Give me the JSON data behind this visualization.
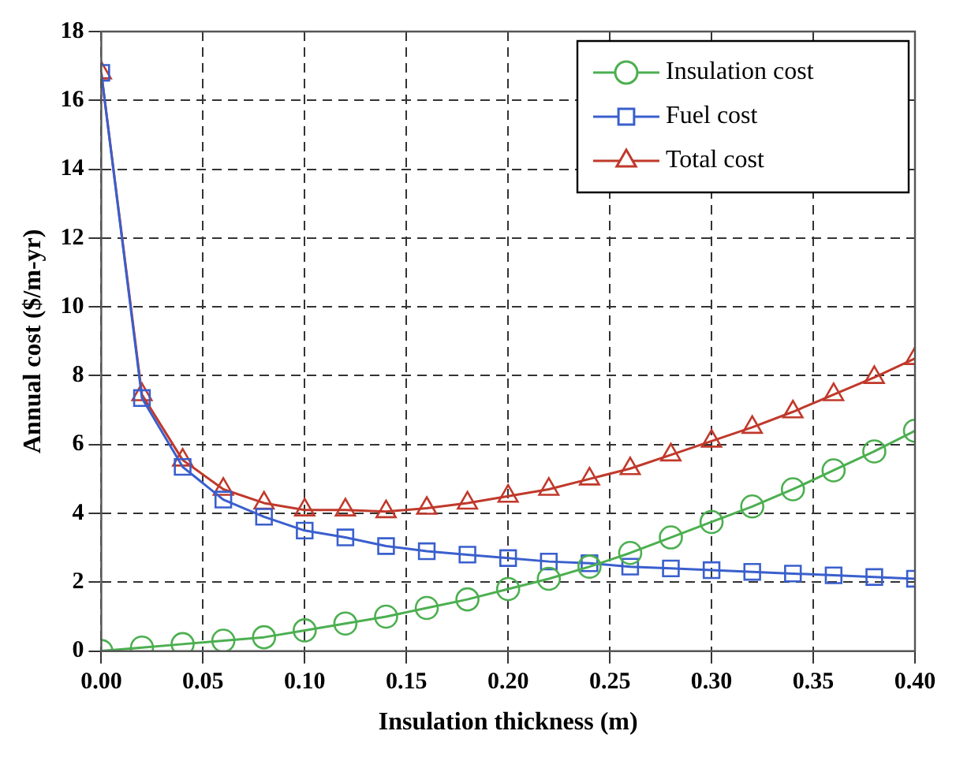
{
  "chart_data": {
    "type": "line",
    "xlabel": "Insulation thickness (m)",
    "ylabel": "Annual cost ($/m-yr)",
    "x": [
      0,
      0.02,
      0.04,
      0.06,
      0.08,
      0.1,
      0.12,
      0.14,
      0.16,
      0.18,
      0.2,
      0.22,
      0.24,
      0.26,
      0.28,
      0.3,
      0.32,
      0.34,
      0.36,
      0.38,
      0.4
    ],
    "series": [
      {
        "name": "Insulation cost",
        "color": "#4caf50",
        "marker": "circle",
        "values": [
          0,
          0.1,
          0.2,
          0.3,
          0.4,
          0.6,
          0.8,
          1.0,
          1.25,
          1.5,
          1.8,
          2.1,
          2.45,
          2.85,
          3.3,
          3.75,
          4.2,
          4.7,
          5.25,
          5.8,
          6.4
        ]
      },
      {
        "name": "Fuel cost",
        "color": "#3a5fcd",
        "marker": "square",
        "values": [
          16.8,
          7.35,
          5.35,
          4.4,
          3.9,
          3.5,
          3.3,
          3.05,
          2.9,
          2.8,
          2.7,
          2.6,
          2.55,
          2.45,
          2.4,
          2.35,
          2.3,
          2.25,
          2.2,
          2.15,
          2.1
        ]
      },
      {
        "name": "Total cost",
        "color": "#c0392b",
        "marker": "triangle",
        "values": [
          16.8,
          7.45,
          5.55,
          4.7,
          4.3,
          4.1,
          4.1,
          4.05,
          4.15,
          4.3,
          4.5,
          4.7,
          5.0,
          5.3,
          5.7,
          6.1,
          6.5,
          6.95,
          7.45,
          7.95,
          8.5
        ]
      }
    ],
    "xlim": [
      0,
      0.4
    ],
    "xticks": [
      {
        "value": 0,
        "label": "0.00"
      },
      {
        "value": 0.05,
        "label": "0.05"
      },
      {
        "value": 0.1,
        "label": "0.10"
      },
      {
        "value": 0.15,
        "label": "0.15"
      },
      {
        "value": 0.2,
        "label": "0.20"
      },
      {
        "value": 0.25,
        "label": "0.25"
      },
      {
        "value": 0.3,
        "label": "0.30"
      },
      {
        "value": 0.35,
        "label": "0.35"
      },
      {
        "value": 0.4,
        "label": "0.40"
      }
    ],
    "ylim": [
      0,
      18
    ],
    "yticks": [
      0,
      2,
      4,
      6,
      8,
      10,
      12,
      14,
      16,
      18
    ],
    "grid": true,
    "line_style": "solid",
    "legend": "top right"
  }
}
